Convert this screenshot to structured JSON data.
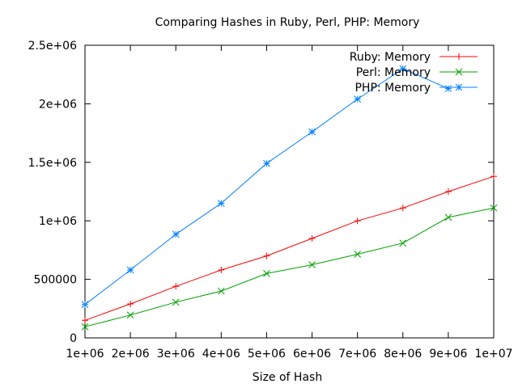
{
  "chart_data": {
    "type": "line",
    "title": "Comparing Hashes in Ruby, Perl, PHP: Memory",
    "xlabel": "Size of Hash",
    "ylabel": "",
    "xlim": [
      1000000,
      10000000
    ],
    "ylim": [
      0,
      2500000
    ],
    "x_tick_values": [
      1000000,
      2000000,
      3000000,
      4000000,
      5000000,
      6000000,
      7000000,
      8000000,
      9000000,
      10000000
    ],
    "x_tick_labels": [
      "1e+06",
      "2e+06",
      "3e+06",
      "4e+06",
      "5e+06",
      "6e+06",
      "7e+06",
      "8e+06",
      "9e+06",
      "1e+07"
    ],
    "y_tick_values": [
      0,
      500000,
      1000000,
      1500000,
      2000000,
      2500000
    ],
    "y_tick_labels": [
      "0",
      "500000",
      "1e+06",
      "1.5e+06",
      "2e+06",
      "2.5e+06"
    ],
    "grid": false,
    "legend_position": "top-right",
    "x": [
      1000000,
      2000000,
      3000000,
      4000000,
      5000000,
      6000000,
      7000000,
      8000000,
      9000000,
      10000000
    ],
    "series": [
      {
        "name": "Ruby: Memory",
        "color": "#ff0000",
        "marker": "plus",
        "values": [
          150000,
          290000,
          440000,
          580000,
          700000,
          850000,
          1000000,
          1110000,
          1250000,
          1380000
        ]
      },
      {
        "name": "Perl: Memory",
        "color": "#00a000",
        "marker": "cross",
        "values": [
          95000,
          195000,
          305000,
          400000,
          550000,
          625000,
          715000,
          810000,
          1030000,
          1110000
        ]
      },
      {
        "name": "PHP: Memory",
        "color": "#0080ff",
        "marker": "star",
        "values": [
          285000,
          580000,
          885000,
          1150000,
          1490000,
          1760000,
          2040000,
          2300000,
          2130000,
          null
        ]
      }
    ]
  }
}
